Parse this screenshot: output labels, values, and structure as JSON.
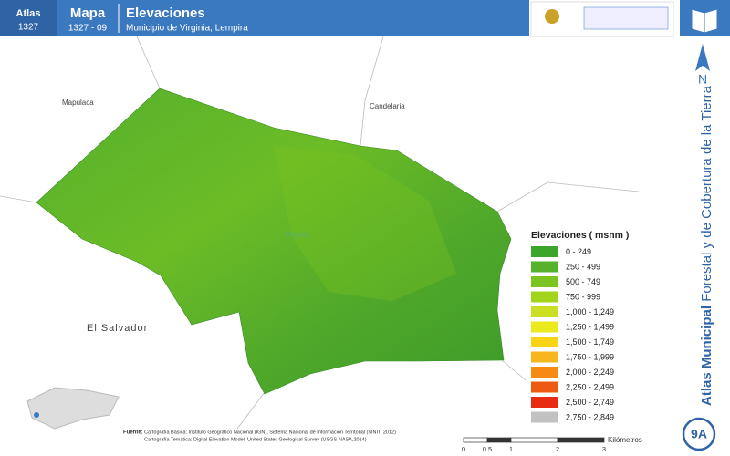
{
  "header": {
    "atlas_label": "Atlas",
    "atlas_number": "1327",
    "map_label": "Mapa",
    "map_number": "1327 - 09",
    "title": "Elevaciones",
    "subtitle": "Municipio de Virginia, Lempira"
  },
  "places": {
    "mapulaca": "Mapulaca",
    "candelaria": "Candelaria",
    "el_salvador": "El Salvador",
    "virginia": "Virginia"
  },
  "legend": {
    "title": "Elevaciones ( msnm )",
    "items": [
      {
        "label": "0 - 249",
        "color": "#3ca52c"
      },
      {
        "label": "250 - 499",
        "color": "#55b22a"
      },
      {
        "label": "500 - 749",
        "color": "#7cc420"
      },
      {
        "label": "750 - 999",
        "color": "#a2d41c"
      },
      {
        "label": "1,000 - 1,249",
        "color": "#cbe023"
      },
      {
        "label": "1,250 - 1,499",
        "color": "#eaea1e"
      },
      {
        "label": "1,500 - 1,749",
        "color": "#f8d414"
      },
      {
        "label": "1,750 - 1,999",
        "color": "#f8b61e"
      },
      {
        "label": "2,000 - 2,249",
        "color": "#f68a12"
      },
      {
        "label": "2,250 - 2,499",
        "color": "#ef5a12"
      },
      {
        "label": "2,500 - 2,749",
        "color": "#e72c12"
      },
      {
        "label": "2,750 - 2,849",
        "color": "#c2c2c2"
      }
    ]
  },
  "sidebar": {
    "north": "N",
    "atlas_bold": "Atlas Municipal",
    "atlas_rest": "Forestal y de Cobertura de la Tierra",
    "code": "9A"
  },
  "source": {
    "label": "Fuente:",
    "line1": "Cartografía Básica: Instituto Geográfico Nacional (IGN), Sistema Nacional de Información Territorial (SINIT, 2012)",
    "line2": "Cartografía Temática: Digital Elevation Model, United States Geological Survey (USGS-NASA,2014)"
  },
  "scale": {
    "ticks": [
      "0",
      "0.5",
      "1",
      "2",
      "3"
    ],
    "unit": "Kilómetros"
  }
}
